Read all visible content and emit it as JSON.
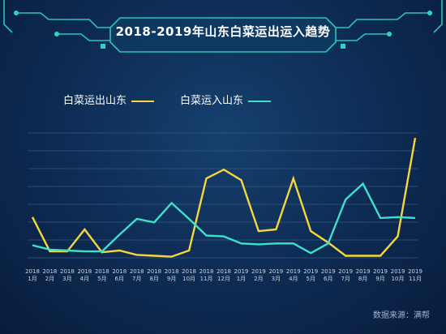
{
  "title": "2018-2019年山东白菜运出运入趋势",
  "source": "数据来源：满帮",
  "colors": {
    "series1": "#f5d73c",
    "series2": "#3fe0c8",
    "grid": "#3a5a83",
    "frame": "#2fd5c3"
  },
  "chart_data": {
    "type": "line",
    "categories": [
      {
        "year": "2018",
        "month": "1月"
      },
      {
        "year": "2018",
        "month": "2月"
      },
      {
        "year": "2018",
        "month": "3月"
      },
      {
        "year": "2018",
        "month": "4月"
      },
      {
        "year": "2018",
        "month": "5月"
      },
      {
        "year": "2018",
        "month": "6月"
      },
      {
        "year": "2018",
        "month": "7月"
      },
      {
        "year": "2018",
        "month": "8月"
      },
      {
        "year": "2018",
        "month": "9月"
      },
      {
        "year": "2018",
        "month": "10月"
      },
      {
        "year": "2018",
        "month": "11月"
      },
      {
        "year": "2018",
        "month": "12月"
      },
      {
        "year": "2019",
        "month": "1月"
      },
      {
        "year": "2019",
        "month": "2月"
      },
      {
        "year": "2019",
        "month": "3月"
      },
      {
        "year": "2019",
        "month": "4月"
      },
      {
        "year": "2019",
        "month": "5月"
      },
      {
        "year": "2019",
        "month": "6月"
      },
      {
        "year": "2019",
        "month": "7月"
      },
      {
        "year": "2019",
        "month": "8月"
      },
      {
        "year": "2019",
        "month": "9月"
      },
      {
        "year": "2019",
        "month": "10月"
      },
      {
        "year": "2019",
        "month": "11月"
      }
    ],
    "series": [
      {
        "name": "白菜运出山东",
        "values": [
          22,
          2.5,
          2.5,
          15,
          2,
          3,
          0.5,
          0,
          -0.5,
          3,
          44,
          49,
          43,
          14,
          15,
          44,
          14,
          7.5,
          0,
          0,
          0,
          11,
          67
        ]
      },
      {
        "name": "白菜运入山东",
        "values": [
          6,
          3.5,
          3,
          2.5,
          2.5,
          12,
          21,
          19,
          30,
          21,
          11.5,
          11,
          7,
          6.5,
          7,
          7,
          1.5,
          7,
          32,
          41,
          21.5,
          22,
          21.5
        ]
      }
    ],
    "ylim": [
      -3,
      80
    ],
    "grid": true,
    "legend": "top-left"
  }
}
